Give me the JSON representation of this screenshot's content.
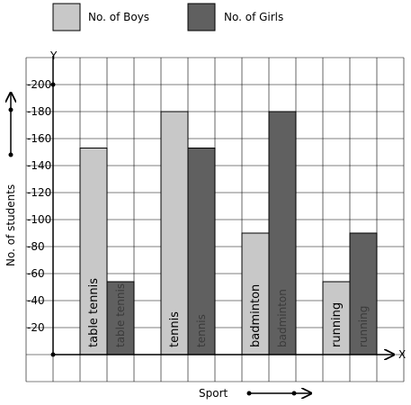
{
  "chart_data": {
    "type": "bar",
    "categories": [
      "table tennis",
      "tennis",
      "badminton",
      "running"
    ],
    "series": [
      {
        "name": "No. of Boys",
        "color": "#c8c8c8",
        "values": [
          153,
          180,
          90,
          54
        ]
      },
      {
        "name": "No. of Girls",
        "color": "#606060",
        "values": [
          54,
          153,
          180,
          90
        ]
      }
    ],
    "xlabel": "Sport",
    "ylabel": "No. of students",
    "x_axis_letter": "X",
    "y_axis_letter": "Y",
    "ylim": [
      0,
      200
    ],
    "yticks": [
      20,
      40,
      60,
      80,
      100,
      120,
      140,
      160,
      180,
      200
    ],
    "grid": true,
    "legend_position": "top"
  }
}
